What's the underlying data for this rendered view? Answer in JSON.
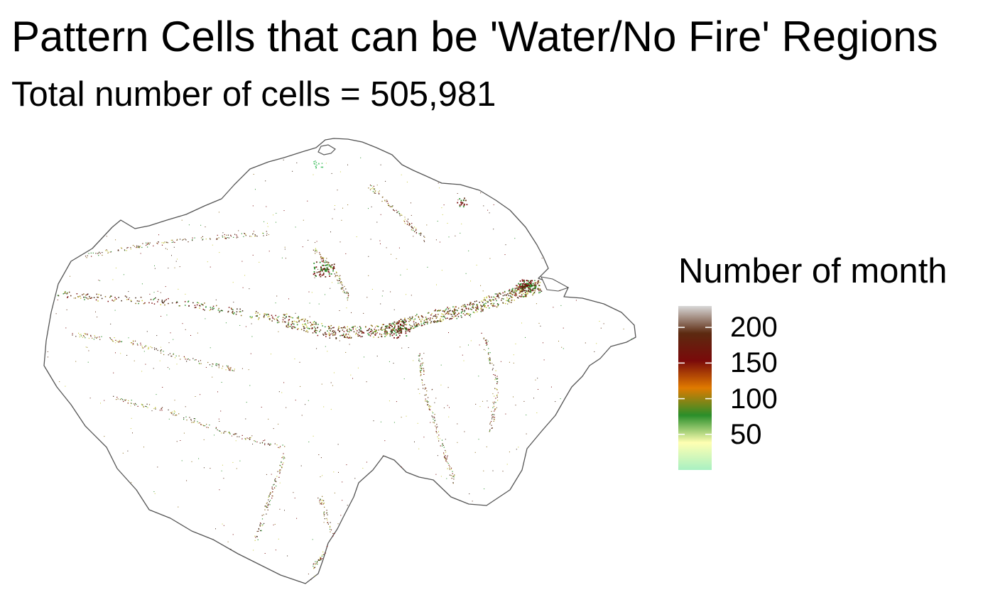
{
  "title": "Pattern Cells that can be 'Water/No Fire' Regions",
  "subtitle": "Total number of cells = 505,981",
  "legend": {
    "title": "Number of month",
    "colors": [
      "#a8f0c2",
      "#ffffb2",
      "#2a8f2a",
      "#e07a00",
      "#7a0a0a",
      "#5c2a10",
      "#d8d8d8"
    ],
    "range": [
      0,
      230
    ],
    "ticks": [
      {
        "value": 200,
        "label": "200"
      },
      {
        "value": 150,
        "label": "150"
      },
      {
        "value": 100,
        "label": "100"
      },
      {
        "value": 50,
        "label": "50"
      }
    ]
  },
  "map": {
    "outline_color": "#555555",
    "cell_colors": [
      "#2a8f2a",
      "#5c2a10",
      "#7a0a0a",
      "#c8c83a",
      "#8a6a1a",
      "#3a2010"
    ]
  }
}
